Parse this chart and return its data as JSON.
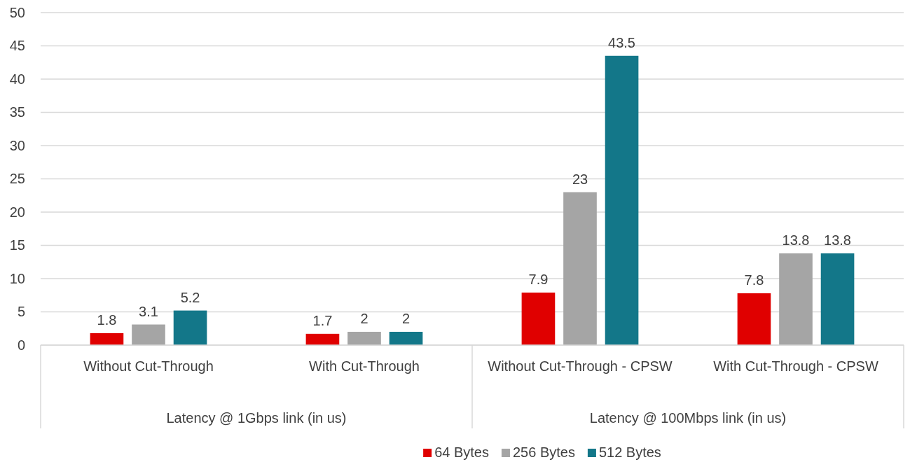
{
  "chart_data": {
    "type": "bar",
    "categories": [
      "Without Cut-Through",
      "With Cut-Through",
      "Without Cut-Through - CPSW",
      "With Cut-Through - CPSW"
    ],
    "series": [
      {
        "name": "64 Bytes",
        "color": "#e00000",
        "values": [
          1.8,
          1.7,
          7.9,
          7.8
        ]
      },
      {
        "name": "256 Bytes",
        "color": "#a5a5a5",
        "values": [
          3.1,
          2,
          23,
          13.8
        ]
      },
      {
        "name": "512 Bytes",
        "color": "#137789",
        "values": [
          5.2,
          2,
          43.5,
          13.8
        ]
      }
    ],
    "annotations": [
      "Latency @ 1Gbps link (in us)",
      "Latency @ 100Mbps link (in us)"
    ],
    "ylim": [
      0,
      50
    ],
    "yticks": [
      0,
      5,
      10,
      15,
      20,
      25,
      30,
      35,
      40,
      45,
      50
    ],
    "grid": "y",
    "legend": "bottom",
    "data_labels": true
  }
}
